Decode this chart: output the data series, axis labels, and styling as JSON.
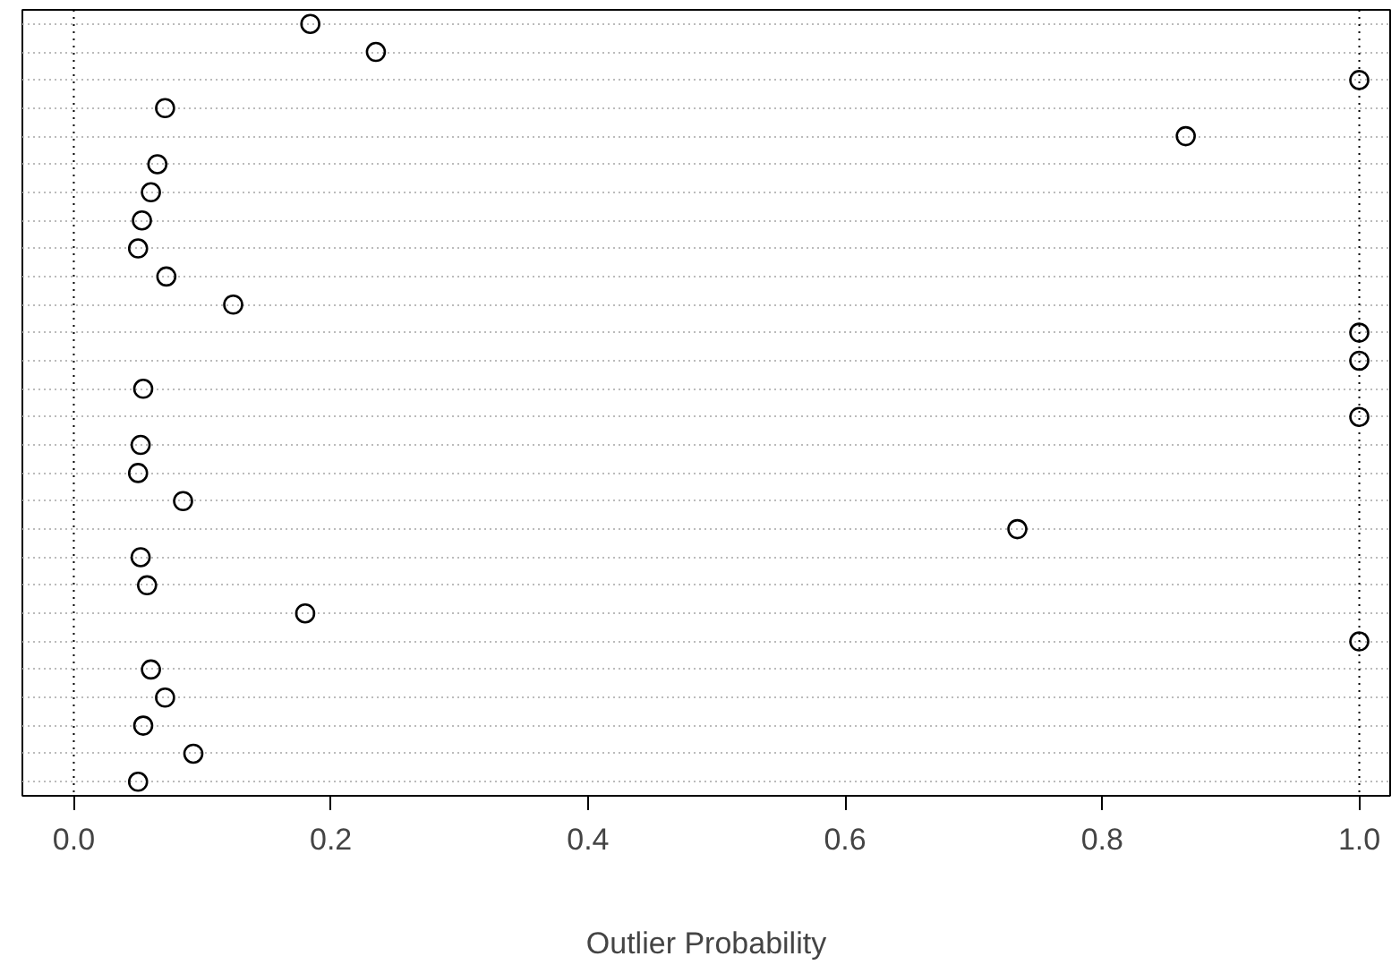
{
  "chart_data": {
    "type": "scatter",
    "orientation": "horizontal",
    "xlabel": "Outlier Probability",
    "categories": [
      null,
      null,
      null,
      null,
      null,
      null,
      null,
      null,
      null,
      null,
      null,
      null,
      null,
      null,
      null,
      null,
      null,
      null,
      null,
      null,
      null,
      null,
      null,
      null,
      null,
      null,
      null,
      null
    ],
    "values": [
      0.184,
      0.235,
      1.0,
      0.071,
      0.865,
      0.065,
      0.06,
      0.053,
      0.05,
      0.072,
      0.124,
      1.0,
      1.0,
      0.054,
      1.0,
      0.052,
      0.05,
      0.085,
      0.734,
      0.052,
      0.057,
      0.18,
      1.0,
      0.06,
      0.071,
      0.054,
      0.093,
      0.05
    ],
    "color": "#000000",
    "marker": "circle",
    "xlim": [
      -0.04,
      1.024
    ],
    "xticks": [
      {
        "value": 0,
        "label": "0.0"
      },
      0.2,
      0.4,
      0.6,
      0.8,
      {
        "value": 1,
        "label": "1.0"
      }
    ],
    "ref_lines": [
      {
        "axis": "x",
        "value": 0,
        "line_style": "dotted",
        "color": "#000000"
      },
      {
        "axis": "x",
        "value": 1,
        "line_style": "dotted",
        "color": "#000000"
      }
    ],
    "grid": "y",
    "tick_labels": "x"
  }
}
